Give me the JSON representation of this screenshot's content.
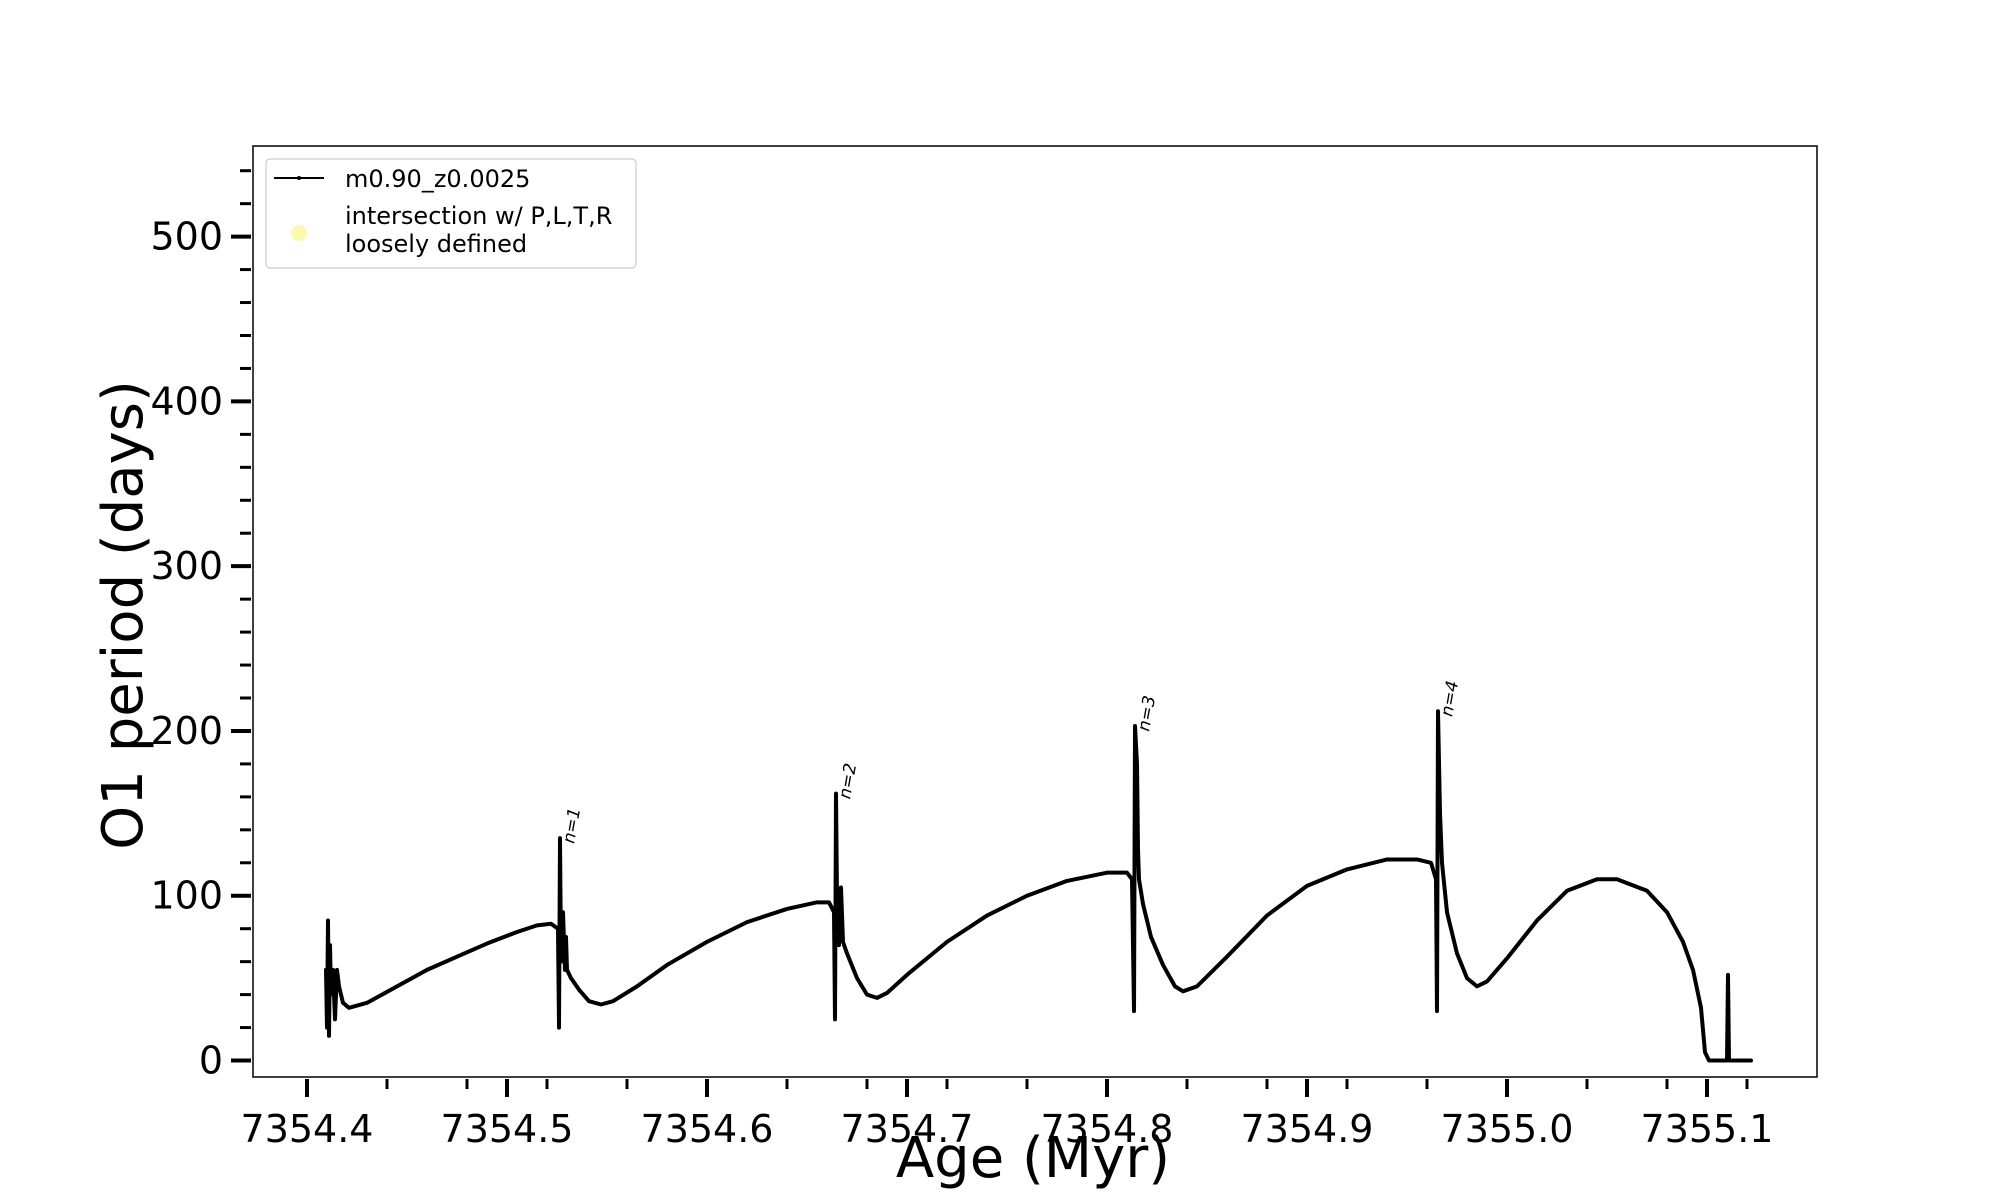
{
  "chart_data": {
    "type": "line",
    "title": "",
    "xlabel": "Age (Myr)",
    "ylabel": "O1 period (days)",
    "xlim": [
      7354.373,
      7355.155
    ],
    "ylim": [
      -10,
      555
    ],
    "x_ticks": [
      7354.4,
      7354.5,
      7354.6,
      7354.7,
      7354.8,
      7354.9,
      7355.0,
      7355.1
    ],
    "x_tick_labels": [
      "7354.4",
      "7354.5",
      "7354.6",
      "7354.7",
      "7354.8",
      "7354.9",
      "7355.0",
      "7355.1"
    ],
    "y_ticks": [
      0,
      100,
      200,
      300,
      400,
      500
    ],
    "y_tick_labels": [
      "0",
      "100",
      "200",
      "300",
      "400",
      "500"
    ],
    "grid": false,
    "legend": {
      "placement": "top-left",
      "entries": [
        {
          "label": "m0.90_z0.0025",
          "marker": "line",
          "color": "#000000"
        },
        {
          "label_lines": [
            "intersection w/ P,L,T,R",
            "loosely defined"
          ],
          "marker": "circle",
          "color": "#fdf7b0"
        }
      ]
    },
    "series": [
      {
        "name": "m0.90_z0.0025",
        "color": "#000000",
        "points": [
          [
            7354.4095,
            55
          ],
          [
            7354.41,
            20
          ],
          [
            7354.4105,
            85
          ],
          [
            7354.411,
            15
          ],
          [
            7354.4115,
            70
          ],
          [
            7354.412,
            40
          ],
          [
            7354.413,
            55
          ],
          [
            7354.414,
            25
          ],
          [
            7354.415,
            55
          ],
          [
            7354.416,
            45
          ],
          [
            7354.418,
            35
          ],
          [
            7354.421,
            32
          ],
          [
            7354.43,
            35
          ],
          [
            7354.445,
            45
          ],
          [
            7354.46,
            55
          ],
          [
            7354.475,
            63
          ],
          [
            7354.49,
            71
          ],
          [
            7354.505,
            78
          ],
          [
            7354.515,
            82
          ],
          [
            7354.522,
            83
          ],
          [
            7354.5255,
            80
          ],
          [
            7354.526,
            20
          ],
          [
            7354.5265,
            135
          ],
          [
            7354.527,
            60
          ],
          [
            7354.528,
            90
          ],
          [
            7354.529,
            55
          ],
          [
            7354.5295,
            75
          ],
          [
            7354.53,
            55
          ],
          [
            7354.532,
            50
          ],
          [
            7354.536,
            43
          ],
          [
            7354.541,
            36
          ],
          [
            7354.547,
            34
          ],
          [
            7354.553,
            36
          ],
          [
            7354.565,
            45
          ],
          [
            7354.58,
            58
          ],
          [
            7354.6,
            72
          ],
          [
            7354.62,
            84
          ],
          [
            7354.64,
            92
          ],
          [
            7354.655,
            96
          ],
          [
            7354.661,
            96
          ],
          [
            7354.6635,
            90
          ],
          [
            7354.664,
            25
          ],
          [
            7354.6645,
            162
          ],
          [
            7354.665,
            100
          ],
          [
            7354.666,
            70
          ],
          [
            7354.667,
            105
          ],
          [
            7354.668,
            72
          ],
          [
            7354.67,
            65
          ],
          [
            7354.675,
            50
          ],
          [
            7354.68,
            40
          ],
          [
            7354.685,
            38
          ],
          [
            7354.69,
            41
          ],
          [
            7354.7,
            52
          ],
          [
            7354.72,
            72
          ],
          [
            7354.74,
            88
          ],
          [
            7354.76,
            100
          ],
          [
            7354.78,
            109
          ],
          [
            7354.8,
            114
          ],
          [
            7354.81,
            114
          ],
          [
            7354.8125,
            110
          ],
          [
            7354.8135,
            30
          ],
          [
            7354.814,
            203
          ],
          [
            7354.815,
            180
          ],
          [
            7354.8155,
            128
          ],
          [
            7354.816,
            110
          ],
          [
            7354.818,
            95
          ],
          [
            7354.822,
            75
          ],
          [
            7354.828,
            58
          ],
          [
            7354.834,
            45
          ],
          [
            7354.838,
            42
          ],
          [
            7354.845,
            45
          ],
          [
            7354.86,
            63
          ],
          [
            7354.88,
            88
          ],
          [
            7354.9,
            106
          ],
          [
            7354.92,
            116
          ],
          [
            7354.94,
            122
          ],
          [
            7354.955,
            122
          ],
          [
            7354.962,
            120
          ],
          [
            7354.9645,
            110
          ],
          [
            7354.965,
            30
          ],
          [
            7354.9655,
            212
          ],
          [
            7354.9665,
            150
          ],
          [
            7354.9675,
            120
          ],
          [
            7354.97,
            90
          ],
          [
            7354.975,
            65
          ],
          [
            7354.98,
            50
          ],
          [
            7354.985,
            45
          ],
          [
            7354.99,
            48
          ],
          [
            7355.0,
            62
          ],
          [
            7355.015,
            85
          ],
          [
            7355.03,
            103
          ],
          [
            7355.045,
            110
          ],
          [
            7355.055,
            110
          ],
          [
            7355.07,
            103
          ],
          [
            7355.08,
            90
          ],
          [
            7355.088,
            72
          ],
          [
            7355.093,
            55
          ],
          [
            7355.097,
            32
          ],
          [
            7355.099,
            5
          ],
          [
            7355.101,
            0
          ],
          [
            7355.11,
            0
          ],
          [
            7355.1105,
            52
          ],
          [
            7355.111,
            0
          ],
          [
            7355.12,
            0
          ],
          [
            7355.122,
            0
          ]
        ]
      }
    ],
    "annotations": [
      {
        "text": "n=1",
        "x": 7354.5265,
        "y": 135
      },
      {
        "text": "n=2",
        "x": 7354.6645,
        "y": 162
      },
      {
        "text": "n=3",
        "x": 7354.814,
        "y": 203
      },
      {
        "text": "n=4",
        "x": 7354.9655,
        "y": 212
      }
    ]
  }
}
